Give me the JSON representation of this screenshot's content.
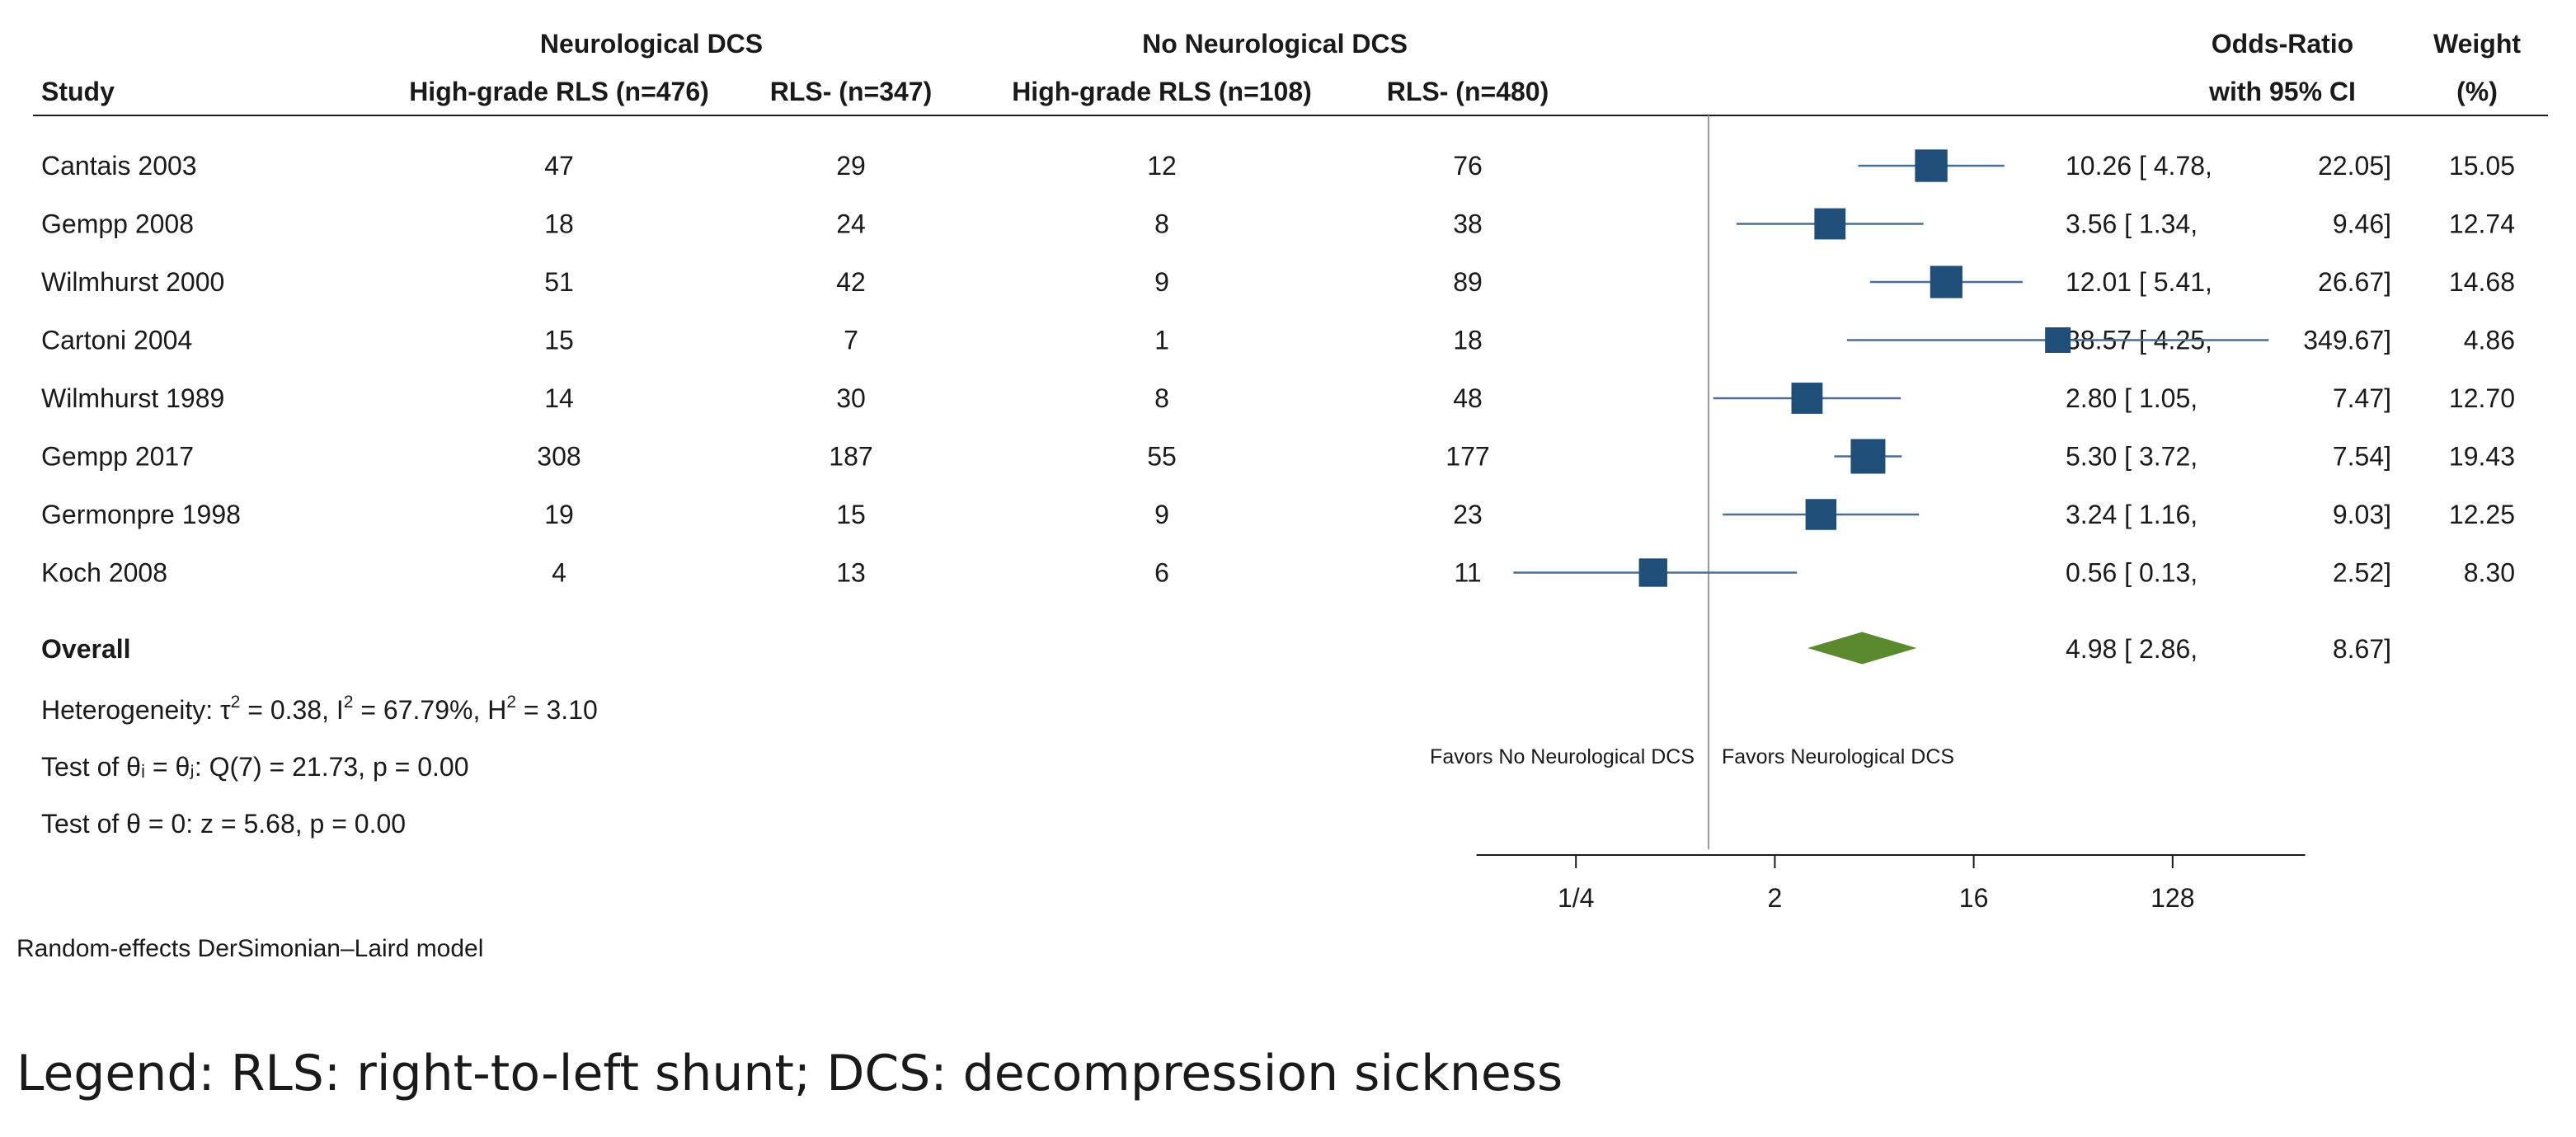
{
  "chart_data": {
    "type": "forest",
    "headers": {
      "study": "Study",
      "group_neuro": "Neurological DCS",
      "group_noneuro": "No Neurological DCS",
      "col_neuro_hg": "High-grade RLS (n=476)",
      "col_neuro_neg": "RLS- (n=347)",
      "col_noneuro_hg": "High-grade RLS (n=108)",
      "col_noneuro_neg": "RLS- (n=480)",
      "or_line1": "Odds-Ratio",
      "or_line2": "with 95% CI",
      "weight_line1": "Weight",
      "weight_line2": "(%)"
    },
    "studies": [
      {
        "name": "Cantais 2003",
        "neuro_hg": "47",
        "neuro_neg": "29",
        "noneuro_hg": "12",
        "noneuro_neg": "76",
        "or": 10.26,
        "lo": 4.78,
        "hi": 22.05,
        "weight": 15.05,
        "or_text": "10.26 [ 4.78,",
        "hi_text": "22.05]",
        "weight_text": "15.05"
      },
      {
        "name": "Gempp 2008",
        "neuro_hg": "18",
        "neuro_neg": "24",
        "noneuro_hg": "8",
        "noneuro_neg": "38",
        "or": 3.56,
        "lo": 1.34,
        "hi": 9.46,
        "weight": 12.74,
        "or_text": "3.56 [ 1.34,",
        "hi_text": "9.46]",
        "weight_text": "12.74"
      },
      {
        "name": "Wilmhurst 2000",
        "neuro_hg": "51",
        "neuro_neg": "42",
        "noneuro_hg": "9",
        "noneuro_neg": "89",
        "or": 12.01,
        "lo": 5.41,
        "hi": 26.67,
        "weight": 14.68,
        "or_text": "12.01 [ 5.41,",
        "hi_text": "26.67]",
        "weight_text": "14.68"
      },
      {
        "name": "Cartoni 2004",
        "neuro_hg": "15",
        "neuro_neg": "7",
        "noneuro_hg": "1",
        "noneuro_neg": "18",
        "or": 38.57,
        "lo": 4.25,
        "hi": 349.67,
        "weight": 4.86,
        "or_text": "38.57 [ 4.25,",
        "hi_text": "349.67]",
        "weight_text": "4.86"
      },
      {
        "name": "Wilmhurst 1989",
        "neuro_hg": "14",
        "neuro_neg": "30",
        "noneuro_hg": "8",
        "noneuro_neg": "48",
        "or": 2.8,
        "lo": 1.05,
        "hi": 7.47,
        "weight": 12.7,
        "or_text": "2.80 [ 1.05,",
        "hi_text": "7.47]",
        "weight_text": "12.70"
      },
      {
        "name": "Gempp 2017",
        "neuro_hg": "308",
        "neuro_neg": "187",
        "noneuro_hg": "55",
        "noneuro_neg": "177",
        "or": 5.3,
        "lo": 3.72,
        "hi": 7.54,
        "weight": 19.43,
        "or_text": "5.30 [ 3.72,",
        "hi_text": "7.54]",
        "weight_text": "19.43"
      },
      {
        "name": "Germonpre 1998",
        "neuro_hg": "19",
        "neuro_neg": "15",
        "noneuro_hg": "9",
        "noneuro_neg": "23",
        "or": 3.24,
        "lo": 1.16,
        "hi": 9.03,
        "weight": 12.25,
        "or_text": "3.24 [ 1.16,",
        "hi_text": "9.03]",
        "weight_text": "12.25"
      },
      {
        "name": "Koch  2008",
        "neuro_hg": "4",
        "neuro_neg": "13",
        "noneuro_hg": "6",
        "noneuro_neg": "11",
        "or": 0.56,
        "lo": 0.13,
        "hi": 2.52,
        "weight": 8.3,
        "or_text": "0.56 [ 0.13,",
        "hi_text": "2.52]",
        "weight_text": "8.30"
      }
    ],
    "overall": {
      "label": "Overall",
      "or": 4.98,
      "lo": 2.86,
      "hi": 8.67,
      "or_text": "4.98 [ 2.86,",
      "hi_text": "8.67]"
    },
    "stats": {
      "het_prefix": "Heterogeneity: τ",
      "het_tau_sup": "2",
      "het_mid1": " = 0.38, I",
      "het_i_sup": "2",
      "het_mid2": " = 67.79%, H",
      "het_h_sup": "2",
      "het_suffix": " = 3.10",
      "test_theta_i": "Test of θᵢ = θⱼ: Q(7) = 21.73, p = 0.00",
      "test_theta_0": "Test of θ = 0: z = 5.68, p = 0.00"
    },
    "model_note": "Random-effects DerSimonian–Laird model",
    "favors_left": "Favors No Neurological DCS",
    "favors_right": "Favors Neurological DCS",
    "axis": {
      "scale": "log2",
      "range": [
        0.0884,
        512
      ],
      "ticks": [
        0.25,
        2,
        16,
        128
      ],
      "tick_labels": [
        "1/4",
        "2",
        "16",
        "128"
      ],
      "ref_line": 1
    },
    "colors": {
      "square": "#1f4e79",
      "ci_line": "#4a6f94",
      "diamond": "#5b8a2e",
      "ref_line": "#999999",
      "text": "#1a1a1a"
    }
  },
  "legend": "Legend: RLS: right-to-left shunt; DCS: decompression sickness"
}
